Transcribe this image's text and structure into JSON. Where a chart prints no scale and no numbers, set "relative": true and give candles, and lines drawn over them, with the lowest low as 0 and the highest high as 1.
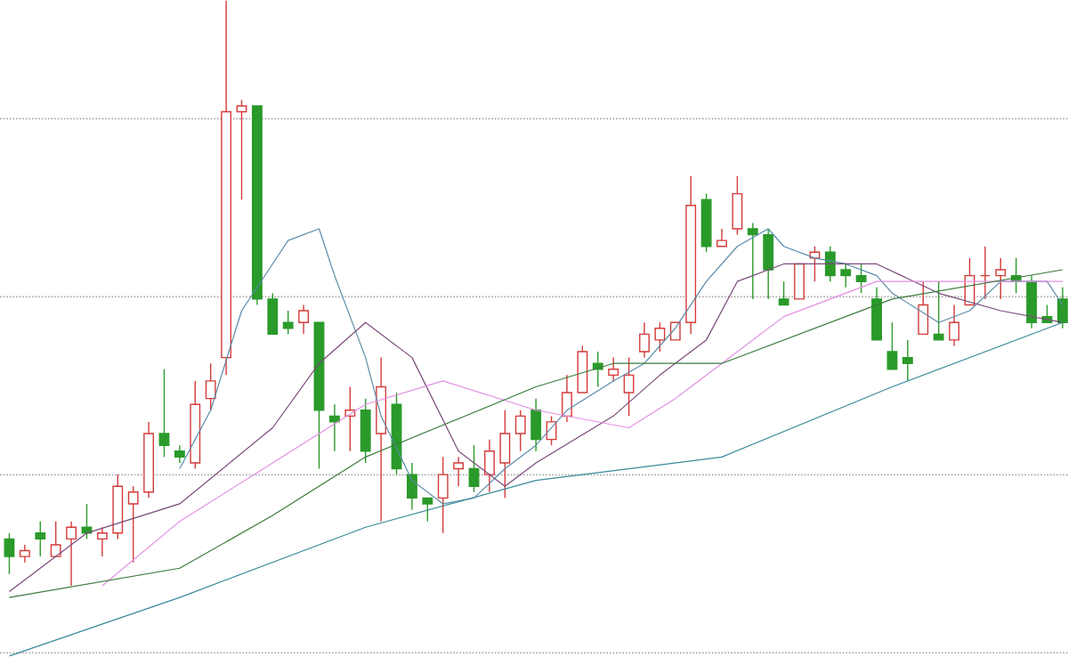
{
  "chart_data": {
    "type": "candlestick",
    "relative": true,
    "grid": "y",
    "categories": [
      null,
      null,
      null,
      null,
      null,
      null,
      null,
      null,
      null,
      null,
      null,
      null,
      null,
      null,
      null,
      null,
      null,
      null,
      null,
      null,
      null,
      null,
      null,
      null,
      null,
      null,
      null,
      null,
      null,
      null,
      null,
      null,
      null,
      null,
      null,
      null,
      null,
      null,
      null,
      null,
      null,
      null,
      null,
      null,
      null,
      null,
      null,
      null,
      null,
      null,
      null,
      null,
      null,
      null,
      null,
      null,
      null,
      null,
      null,
      null,
      null,
      null,
      null,
      null,
      null,
      null,
      null,
      null,
      null
    ],
    "ohlc": [
      [
        0.08,
        0.09,
        0.02,
        0.05
      ],
      [
        0.05,
        0.07,
        0.04,
        0.06
      ],
      [
        0.09,
        0.11,
        0.05,
        0.08
      ],
      [
        0.05,
        0.11,
        0.05,
        0.07
      ],
      [
        0.08,
        0.11,
        0.0,
        0.1
      ],
      [
        0.1,
        0.14,
        0.08,
        0.09
      ],
      [
        0.08,
        0.1,
        0.05,
        0.09
      ],
      [
        0.09,
        0.19,
        0.08,
        0.17
      ],
      [
        0.14,
        0.17,
        0.04,
        0.16
      ],
      [
        0.16,
        0.28,
        0.15,
        0.26
      ],
      [
        0.26,
        0.37,
        0.22,
        0.24
      ],
      [
        0.23,
        0.24,
        0.21,
        0.22
      ],
      [
        0.21,
        0.35,
        0.2,
        0.31
      ],
      [
        0.32,
        0.38,
        0.3,
        0.35
      ],
      [
        0.39,
        1,
        0.36,
        0.81
      ],
      [
        0.81,
        0.83,
        0.66,
        0.82
      ],
      [
        0.82,
        0.82,
        0.48,
        0.49
      ],
      [
        0.49,
        0.5,
        0.43,
        0.43
      ],
      [
        0.45,
        0.47,
        0.43,
        0.44
      ],
      [
        0.45,
        0.48,
        0.43,
        0.47
      ],
      [
        0.45,
        0.45,
        0.2,
        0.3
      ],
      [
        0.29,
        0.31,
        0.23,
        0.28
      ],
      [
        0.29,
        0.34,
        0.23,
        0.3
      ],
      [
        0.3,
        0.32,
        0.21,
        0.23
      ],
      [
        0.26,
        0.39,
        0.11,
        0.34
      ],
      [
        0.31,
        0.33,
        0.19,
        0.2
      ],
      [
        0.19,
        0.21,
        0.13,
        0.15
      ],
      [
        0.15,
        0.15,
        0.11,
        0.14
      ],
      [
        0.15,
        0.22,
        0.09,
        0.19
      ],
      [
        0.2,
        0.22,
        0.17,
        0.21
      ],
      [
        0.2,
        0.24,
        0.16,
        0.17
      ],
      [
        0.19,
        0.25,
        0.16,
        0.23
      ],
      [
        0.21,
        0.3,
        0.15,
        0.26
      ],
      [
        0.26,
        0.3,
        0.23,
        0.29
      ],
      [
        0.3,
        0.32,
        0.23,
        0.25
      ],
      [
        0.25,
        0.29,
        0.24,
        0.28
      ],
      [
        0.29,
        0.36,
        0.28,
        0.33
      ],
      [
        0.33,
        0.41,
        0.33,
        0.4
      ],
      [
        0.38,
        0.4,
        0.34,
        0.37
      ],
      [
        0.36,
        0.39,
        0.35,
        0.37
      ],
      [
        0.33,
        0.39,
        0.29,
        0.36
      ],
      [
        0.4,
        0.45,
        0.39,
        0.43
      ],
      [
        0.42,
        0.45,
        0.4,
        0.44
      ],
      [
        0.42,
        0.45,
        0.42,
        0.45
      ],
      [
        0.45,
        0.7,
        0.43,
        0.65
      ],
      [
        0.66,
        0.67,
        0.57,
        0.58
      ],
      [
        0.58,
        0.61,
        0.58,
        0.59
      ],
      [
        0.61,
        0.7,
        0.6,
        0.67
      ],
      [
        0.61,
        0.62,
        0.49,
        0.6
      ],
      [
        0.6,
        0.61,
        0.49,
        0.54
      ],
      [
        0.49,
        0.52,
        0.48,
        0.48
      ],
      [
        0.49,
        0.55,
        0.49,
        0.55
      ],
      [
        0.56,
        0.58,
        0.52,
        0.57
      ],
      [
        0.57,
        0.58,
        0.52,
        0.53
      ],
      [
        0.54,
        0.55,
        0.51,
        0.53
      ],
      [
        0.53,
        0.55,
        0.5,
        0.52
      ],
      [
        0.49,
        0.51,
        0.42,
        0.42
      ],
      [
        0.4,
        0.45,
        0.37,
        0.37
      ],
      [
        0.39,
        0.42,
        0.35,
        0.38
      ],
      [
        0.43,
        0.52,
        0.43,
        0.48
      ],
      [
        0.43,
        0.52,
        0.42,
        0.42
      ],
      [
        0.42,
        0.48,
        0.41,
        0.45
      ],
      [
        0.48,
        0.56,
        0.48,
        0.53
      ],
      [
        0.53,
        0.58,
        0.49,
        0.53
      ],
      [
        0.53,
        0.56,
        0.49,
        0.54
      ],
      [
        0.53,
        0.56,
        0.5,
        0.52
      ],
      [
        0.52,
        0.53,
        0.44,
        0.45
      ],
      [
        0.46,
        0.48,
        0.45,
        0.45
      ],
      [
        0.49,
        0.51,
        0.44,
        0.45
      ]
    ],
    "colors": [
      "#2a9a2a",
      "#d43a3a",
      "#2a9a2a",
      "#d43a3a",
      "#d43a3a",
      "#2a9a2a",
      "#d43a3a",
      "#d43a3a",
      "#d43a3a",
      "#d43a3a",
      "#2a9a2a",
      "#2a9a2a",
      "#d43a3a",
      "#d43a3a",
      "#d43a3a",
      "#d43a3a",
      "#2a9a2a",
      "#2a9a2a",
      "#2a9a2a",
      "#d43a3a",
      "#2a9a2a",
      "#2a9a2a",
      "#d43a3a",
      "#2a9a2a",
      "#d43a3a",
      "#2a9a2a",
      "#2a9a2a",
      "#2a9a2a",
      "#d43a3a",
      "#d43a3a",
      "#2a9a2a",
      "#d43a3a",
      "#d43a3a",
      "#d43a3a",
      "#2a9a2a",
      "#d43a3a",
      "#d43a3a",
      "#d43a3a",
      "#2a9a2a",
      "#d43a3a",
      "#d43a3a",
      "#d43a3a",
      "#d43a3a",
      "#d43a3a",
      "#d43a3a",
      "#2a9a2a",
      "#d43a3a",
      "#d43a3a",
      "#2a9a2a",
      "#2a9a2a",
      "#2a9a2a",
      "#d43a3a",
      "#d43a3a",
      "#2a9a2a",
      "#2a9a2a",
      "#2a9a2a",
      "#2a9a2a",
      "#2a9a2a",
      "#2a9a2a",
      "#d43a3a",
      "#2a9a2a",
      "#d43a3a",
      "#d43a3a",
      "#d43a3a",
      "#d43a3a",
      "#2a9a2a",
      "#2a9a2a",
      "#2a9a2a",
      "#2a9a2a"
    ],
    "series": [
      {
        "type": "line",
        "color": "#5a8aa8",
        "values": [
          null,
          null,
          null,
          null,
          null,
          null,
          null,
          null,
          null,
          null,
          null,
          0.2,
          null,
          0.3,
          null,
          0.47,
          null,
          0.55,
          0.59,
          null,
          0.61,
          0.53,
          null,
          0.39,
          0.29,
          null,
          0.18,
          null,
          0.14,
          null,
          0.15,
          null,
          0.2,
          null,
          0.24,
          null,
          0.3,
          null,
          null,
          0.35,
          null,
          0.38,
          null,
          0.44,
          null,
          0.52,
          null,
          0.58,
          null,
          0.61,
          0.58,
          null,
          0.56,
          null,
          0.55,
          null,
          0.53,
          0.5,
          null,
          null,
          0.45,
          null,
          0.47,
          null,
          0.52,
          null,
          null,
          0.52,
          0.48
        ]
      },
      {
        "type": "line",
        "color": "#7a4a7a",
        "values": [
          -0.01,
          null,
          null,
          null,
          null,
          0.09,
          null,
          null,
          null,
          null,
          null,
          0.14,
          null,
          null,
          null,
          null,
          null,
          0.27,
          null,
          null,
          0.38,
          null,
          null,
          0.45,
          null,
          null,
          0.39,
          null,
          null,
          0.23,
          null,
          null,
          0.17,
          null,
          0.21,
          null,
          null,
          null,
          null,
          0.29,
          null,
          null,
          0.36,
          null,
          null,
          0.42,
          null,
          0.52,
          null,
          null,
          0.55,
          null,
          null,
          null,
          0.55,
          null,
          0.55,
          null,
          null,
          null,
          0.5,
          null,
          null,
          null,
          0.47,
          null,
          null,
          null,
          0.45
        ]
      },
      {
        "type": "line",
        "color": "#e38fe3",
        "values": [
          null,
          null,
          null,
          null,
          null,
          null,
          0.0,
          null,
          null,
          null,
          null,
          0.11,
          null,
          null,
          null,
          null,
          null,
          0.21,
          null,
          null,
          null,
          null,
          null,
          0.31,
          null,
          null,
          null,
          null,
          0.35,
          null,
          null,
          null,
          null,
          null,
          0.3,
          null,
          null,
          null,
          null,
          null,
          0.27,
          null,
          null,
          0.32,
          null,
          null,
          0.38,
          null,
          null,
          null,
          0.46,
          null,
          null,
          null,
          null,
          null,
          0.52,
          null,
          null,
          null,
          null,
          null,
          0.52,
          null,
          null,
          null,
          null,
          null,
          0.52
        ]
      },
      {
        "type": "line",
        "color": "#3a7a3a",
        "values": [
          -0.02,
          null,
          null,
          null,
          null,
          null,
          null,
          null,
          null,
          null,
          null,
          0.03,
          null,
          null,
          null,
          null,
          null,
          0.12,
          null,
          null,
          null,
          null,
          null,
          0.22,
          null,
          null,
          null,
          null,
          null,
          null,
          null,
          null,
          null,
          null,
          0.34,
          null,
          null,
          null,
          null,
          0.38,
          null,
          null,
          null,
          null,
          null,
          null,
          0.38,
          null,
          null,
          null,
          null,
          null,
          null,
          null,
          null,
          null,
          null,
          0.49,
          null,
          null,
          null,
          null,
          null,
          null,
          null,
          null,
          null,
          null,
          0.54
        ]
      },
      {
        "type": "line",
        "color": "#3a8a9a",
        "values": [
          -0.12,
          null,
          null,
          null,
          null,
          null,
          null,
          null,
          null,
          null,
          null,
          -0.02,
          null,
          null,
          null,
          null,
          null,
          null,
          null,
          null,
          null,
          null,
          null,
          0.1,
          null,
          null,
          null,
          null,
          null,
          null,
          null,
          null,
          null,
          null,
          0.18,
          null,
          null,
          null,
          null,
          null,
          null,
          null,
          null,
          null,
          null,
          null,
          0.22,
          null,
          null,
          null,
          null,
          null,
          null,
          null,
          null,
          null,
          null,
          0.34,
          null,
          null,
          null,
          null,
          null,
          null,
          null,
          null,
          null,
          null,
          0.45
        ]
      }
    ]
  }
}
